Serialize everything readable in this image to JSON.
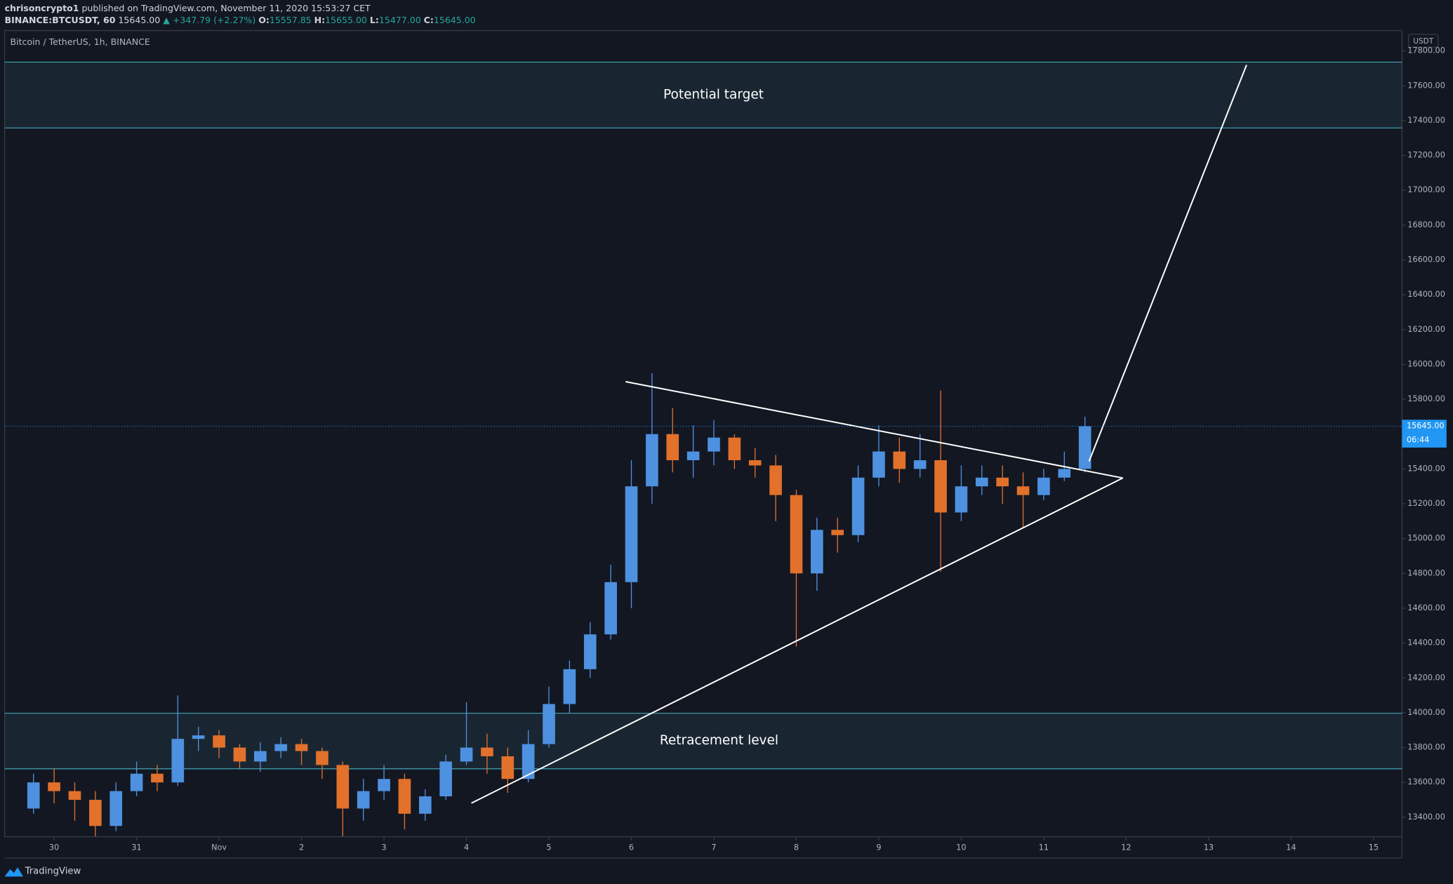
{
  "header": {
    "user": "chrisoncrypto1",
    "published": "published on TradingView.com, November 11, 2020 15:53:27 CET",
    "symbol": "BINANCE:BTCUSDT, 60",
    "last": "15645.00",
    "change": "▲ +347.79 (+2.27%)",
    "ohlc": [
      {
        "key": "O:",
        "value": "15557.85"
      },
      {
        "key": "H:",
        "value": "15655.00"
      },
      {
        "key": "L:",
        "value": "15477.00"
      },
      {
        "key": "C:",
        "value": "15645.00"
      }
    ]
  },
  "footer": {
    "brand": "TradingView"
  },
  "chart_data": {
    "type": "candlestick",
    "title": "Bitcoin / TetherUS, 1h, BINANCE",
    "y_unit": "USDT",
    "up_color": "#4e91e0",
    "down_color": "#e2712b",
    "grid": false,
    "x": [
      -0.25,
      0,
      0.25,
      0.5,
      0.75,
      1,
      1.25,
      1.5,
      1.75,
      2,
      2.25,
      2.5,
      2.75,
      3,
      3.25,
      3.5,
      3.75,
      4,
      4.25,
      4.5,
      4.75,
      5,
      5.25,
      5.5,
      5.75,
      6,
      6.25,
      6.5,
      6.75,
      7,
      7.25,
      7.5,
      7.75,
      8,
      8.25,
      8.5,
      8.75,
      9,
      9.25,
      9.5,
      9.75,
      10,
      10.25,
      10.5,
      10.75,
      11,
      11.25,
      11.5,
      11.75,
      12,
      12.25,
      12.5
    ],
    "open": [
      13450,
      13600,
      13550,
      13500,
      13350,
      13550,
      13650,
      13600,
      13850,
      13870,
      13800,
      13720,
      13780,
      13820,
      13780,
      13700,
      13450,
      13550,
      13620,
      13420,
      13520,
      13720,
      13800,
      13750,
      13620,
      13820,
      14050,
      14250,
      14450,
      14750,
      15300,
      15600,
      15450,
      15500,
      15580,
      15450,
      15420,
      15250,
      14800,
      15050,
      15020,
      15350,
      15500,
      15400,
      15450,
      15150,
      15300,
      15350,
      15300,
      15250,
      15350,
      15400
    ],
    "high": [
      13650,
      13680,
      13600,
      13550,
      13600,
      13720,
      13700,
      14100,
      13920,
      13900,
      13820,
      13830,
      13860,
      13850,
      13800,
      13720,
      13620,
      13700,
      13650,
      13560,
      13760,
      14060,
      13880,
      13800,
      13900,
      14150,
      14300,
      14520,
      14850,
      15450,
      15950,
      15750,
      15650,
      15680,
      15600,
      15520,
      15480,
      15280,
      15120,
      15120,
      15420,
      15650,
      15580,
      15600,
      15850,
      15420,
      15420,
      15420,
      15380,
      15400,
      15500,
      15700
    ],
    "low": [
      13420,
      13480,
      13380,
      13290,
      13320,
      13520,
      13550,
      13580,
      13780,
      13740,
      13680,
      13660,
      13740,
      13700,
      13620,
      13290,
      13380,
      13500,
      13330,
      13380,
      13500,
      13700,
      13650,
      13540,
      13600,
      13800,
      14000,
      14200,
      14420,
      14600,
      15200,
      15380,
      15350,
      15420,
      15400,
      15350,
      15100,
      14380,
      14700,
      14920,
      14980,
      15300,
      15320,
      15350,
      14810,
      15100,
      15250,
      15200,
      15060,
      15220,
      15330,
      15380
    ],
    "close": [
      13600,
      13550,
      13500,
      13350,
      13550,
      13650,
      13600,
      13850,
      13870,
      13800,
      13720,
      13780,
      13820,
      13780,
      13700,
      13450,
      13550,
      13620,
      13420,
      13520,
      13720,
      13800,
      13750,
      13620,
      13820,
      14050,
      14250,
      14450,
      14750,
      15300,
      15600,
      15450,
      15500,
      15580,
      15450,
      15420,
      15250,
      14800,
      15050,
      15020,
      15350,
      15500,
      15400,
      15450,
      15150,
      15300,
      15350,
      15300,
      15250,
      15350,
      15400,
      15645
    ],
    "xlim": [
      -0.6,
      16.345
    ],
    "xticks": [
      {
        "value": 0,
        "label": "30"
      },
      {
        "value": 1,
        "label": "31"
      },
      {
        "value": 2,
        "label": "Nov"
      },
      {
        "value": 3,
        "label": "2"
      },
      {
        "value": 4,
        "label": "3"
      },
      {
        "value": 5,
        "label": "4"
      },
      {
        "value": 6,
        "label": "5"
      },
      {
        "value": 7,
        "label": "6"
      },
      {
        "value": 8,
        "label": "7"
      },
      {
        "value": 9,
        "label": "8"
      },
      {
        "value": 10,
        "label": "9"
      },
      {
        "value": 11,
        "label": "10"
      },
      {
        "value": 12,
        "label": "11"
      },
      {
        "value": 13,
        "label": "12"
      },
      {
        "value": 14,
        "label": "13"
      },
      {
        "value": 15,
        "label": "14"
      },
      {
        "value": 16,
        "label": "15"
      }
    ],
    "ylim": [
      13288,
      17917
    ],
    "yticks": [
      {
        "value": 13400,
        "label": "13400.00"
      },
      {
        "value": 13600,
        "label": "13600.00"
      },
      {
        "value": 13800,
        "label": "13800.00"
      },
      {
        "value": 14000,
        "label": "14000.00"
      },
      {
        "value": 14200,
        "label": "14200.00"
      },
      {
        "value": 14400,
        "label": "14400.00"
      },
      {
        "value": 14600,
        "label": "14600.00"
      },
      {
        "value": 14800,
        "label": "14800.00"
      },
      {
        "value": 15000,
        "label": "15000.00"
      },
      {
        "value": 15200,
        "label": "15200.00"
      },
      {
        "value": 15400,
        "label": "15400.00"
      },
      {
        "value": 15600,
        "label": "15600.00"
      },
      {
        "value": 15800,
        "label": "15800.00"
      },
      {
        "value": 16000,
        "label": "16000.00"
      },
      {
        "value": 16200,
        "label": "16200.00"
      },
      {
        "value": 16400,
        "label": "16400.00"
      },
      {
        "value": 16600,
        "label": "16600.00"
      },
      {
        "value": 16800,
        "label": "16800.00"
      },
      {
        "value": 17000,
        "label": "17000.00"
      },
      {
        "value": 17200,
        "label": "17200.00"
      },
      {
        "value": 17400,
        "label": "17400.00"
      },
      {
        "value": 17600,
        "label": "17600.00"
      },
      {
        "value": 17800,
        "label": "17800.00"
      }
    ],
    "price_tag": {
      "value": 15645,
      "label": "15645.00",
      "countdown": "06:44",
      "color": "#2196f3"
    },
    "zones": [
      {
        "label": "Potential target",
        "ylim": [
          17358,
          17736
        ]
      },
      {
        "label": "Retracement level",
        "ylim": [
          13678,
          13997
        ]
      }
    ],
    "zone_color": "#4ab3c4",
    "trendlines": [
      {
        "x": [
          6.93,
          12.96
        ],
        "y": [
          15901,
          15348
        ]
      },
      {
        "x": [
          5.06,
          12.96
        ],
        "y": [
          13481,
          15348
        ]
      },
      {
        "x": [
          12.55,
          14.46
        ],
        "y": [
          15444,
          17720
        ]
      }
    ]
  }
}
